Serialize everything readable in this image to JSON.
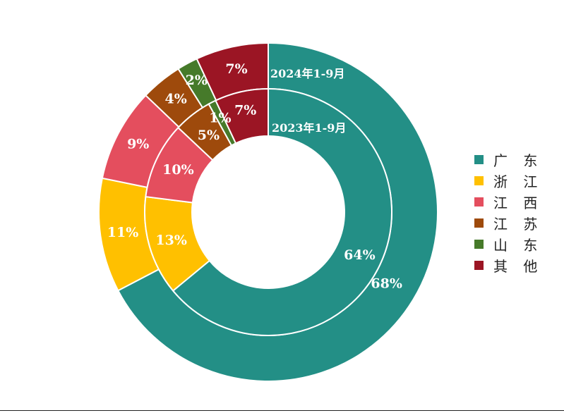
{
  "chart_data": {
    "type": "donut",
    "categories": [
      "广 东",
      "浙 江",
      "江 西",
      "江 苏",
      "山 东",
      "其 他"
    ],
    "colors": [
      "#238F86",
      "#FFC000",
      "#E44E5E",
      "#9E4A0C",
      "#467A2A",
      "#9B1524"
    ],
    "series": [
      {
        "name": "2024年1-9月",
        "values": [
          68,
          11,
          9,
          4,
          2,
          7
        ],
        "labels": [
          "68%",
          "11%",
          "9%",
          "4%",
          "2%",
          "7%"
        ]
      },
      {
        "name": "2023年1-9月",
        "values": [
          64,
          13,
          10,
          5,
          1,
          7
        ],
        "labels": [
          "64%",
          "13%",
          "10%",
          "5%",
          "1%",
          "7%"
        ]
      }
    ],
    "legend": "right"
  }
}
